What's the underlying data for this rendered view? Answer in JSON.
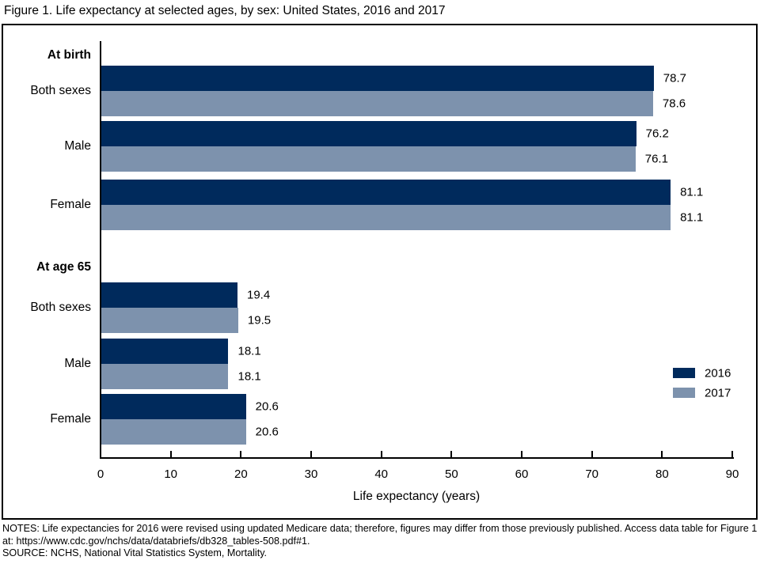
{
  "title": "Figure 1. Life expectancy at selected ages, by sex: United States, 2016 and 2017",
  "chart_data": {
    "type": "bar",
    "orientation": "horizontal",
    "title": "Figure 1. Life expectancy at selected ages, by sex: United States, 2016 and 2017",
    "xlabel": "Life expectancy (years)",
    "xlim": [
      0,
      90
    ],
    "xticks": [
      0,
      10,
      20,
      30,
      40,
      50,
      60,
      70,
      80,
      90
    ],
    "grid": false,
    "legend_position": "right-middle",
    "value_labels_shown": true,
    "groups": [
      {
        "label": "At birth",
        "categories": [
          "Both sexes",
          "Male",
          "Female"
        ],
        "series": [
          {
            "name": "2016",
            "values": [
              78.7,
              76.2,
              81.1
            ]
          },
          {
            "name": "2017",
            "values": [
              78.6,
              76.1,
              81.1
            ]
          }
        ]
      },
      {
        "label": "At age 65",
        "categories": [
          "Both sexes",
          "Male",
          "Female"
        ],
        "series": [
          {
            "name": "2016",
            "values": [
              19.4,
              18.1,
              20.6
            ]
          },
          {
            "name": "2017",
            "values": [
              19.5,
              18.1,
              20.6
            ]
          }
        ]
      }
    ],
    "legend": [
      {
        "label": "2016",
        "color": "#002a5c"
      },
      {
        "label": "2017",
        "color": "#7d92ad"
      }
    ]
  },
  "colors": {
    "bar_2016": "#002a5c",
    "bar_2017": "#7d92ad",
    "axis": "#000000",
    "text": "#000000",
    "background": "#ffffff"
  },
  "notes": "NOTES: Life expectancies for 2016 were revised using updated Medicare data; therefore, figures may differ from those previously published. Access data table for Figure 1 at: https://www.cdc.gov/nchs/data/databriefs/db328_tables-508.pdf#1.",
  "source": "SOURCE: NCHS, National Vital Statistics System, Mortality."
}
